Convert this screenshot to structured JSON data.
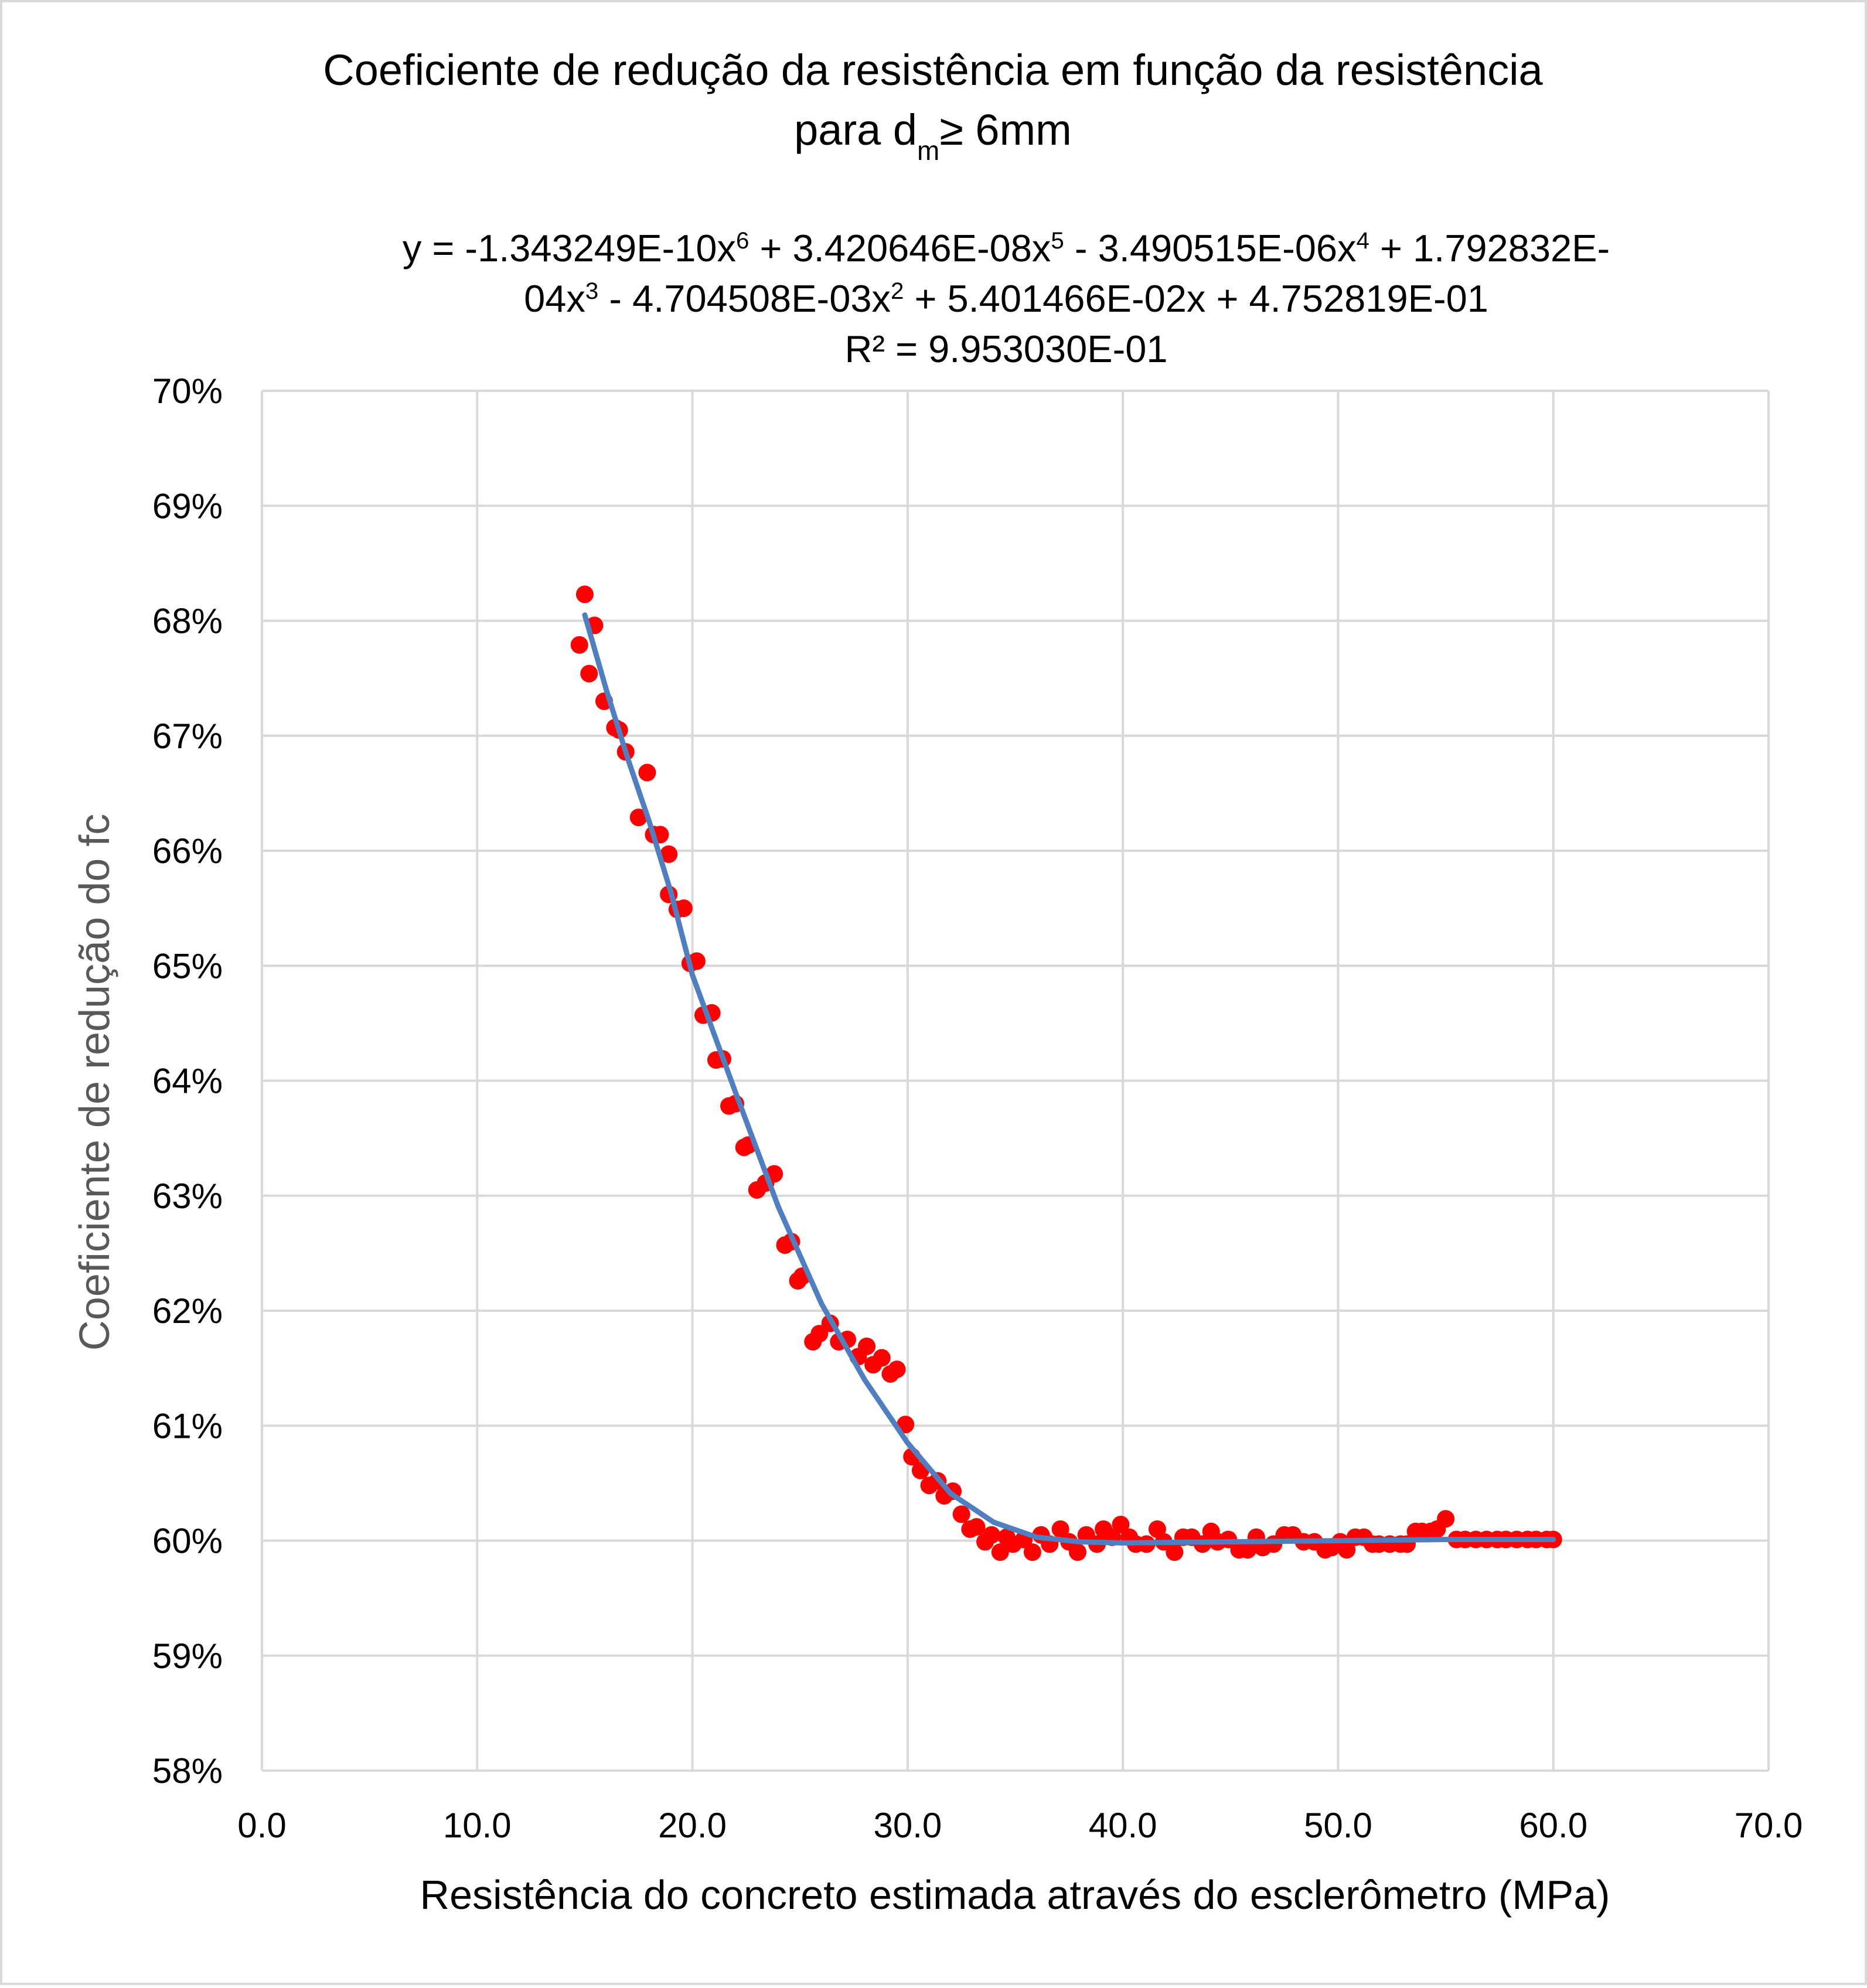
{
  "chart_data": {
    "type": "scatter",
    "title": [
      [
        "Coeficiente de redução da resistência em função da resistência"
      ],
      [
        "para d",
        {
          "sub": "m"
        },
        "≥ 6mm"
      ]
    ],
    "equation": [
      [
        "y = -1.343249E-10x",
        {
          "sup": "6"
        },
        " + 3.420646E-08x",
        {
          "sup": "5"
        },
        " - 3.490515E-06x",
        {
          "sup": "4"
        },
        " + 1.792832E-"
      ],
      [
        "04x",
        {
          "sup": "3"
        },
        " - 4.704508E-03x",
        {
          "sup": "2"
        },
        " + 5.401466E-02x + 4.752819E-01"
      ],
      [
        "R² = 9.953030E-01"
      ]
    ],
    "x_label": "Resistência do concreto estimada através do esclerômetro (MPa)",
    "y_label": "Coeficiente de redução do fc",
    "xlim": [
      0,
      70
    ],
    "ylim": [
      58,
      70
    ],
    "xticks": [
      {
        "value": 0,
        "label": "0.0"
      },
      {
        "value": 10,
        "label": "10.0"
      },
      {
        "value": 20,
        "label": "20.0"
      },
      {
        "value": 30,
        "label": "30.0"
      },
      {
        "value": 40,
        "label": "40.0"
      },
      {
        "value": 50,
        "label": "50.0"
      },
      {
        "value": 60,
        "label": "60.0"
      },
      {
        "value": 70,
        "label": "70.0"
      }
    ],
    "yticks": [
      {
        "value": 58,
        "label": "58%"
      },
      {
        "value": 59,
        "label": "59%"
      },
      {
        "value": 60,
        "label": "60%"
      },
      {
        "value": 61,
        "label": "61%"
      },
      {
        "value": 62,
        "label": "62%"
      },
      {
        "value": 63,
        "label": "63%"
      },
      {
        "value": 64,
        "label": "64%"
      },
      {
        "value": 65,
        "label": "65%"
      },
      {
        "value": 66,
        "label": "66%"
      },
      {
        "value": 67,
        "label": "67%"
      },
      {
        "value": 68,
        "label": "68%"
      },
      {
        "value": 69,
        "label": "69%"
      },
      {
        "value": 70,
        "label": "70%"
      }
    ],
    "grid": true,
    "series": [
      {
        "color": "#ff0000",
        "mode": "markers",
        "x": [
          14.75,
          15.0,
          15.45,
          15.2,
          15.9,
          16.4,
          16.6,
          16.9,
          17.5,
          17.9,
          18.2,
          18.5,
          18.9,
          18.9,
          19.3,
          19.6,
          19.9,
          20.2,
          20.5,
          20.9,
          21.1,
          21.4,
          21.7,
          22.0,
          22.4,
          22.6,
          23.0,
          23.4,
          23.8,
          24.3,
          24.6,
          24.9,
          25.1,
          25.6,
          25.9,
          26.4,
          26.8,
          27.2,
          27.7,
          28.1,
          28.4,
          28.8,
          29.2,
          29.5,
          29.9,
          30.2,
          30.6,
          31.0,
          31.4,
          31.7,
          32.1,
          32.5,
          32.9,
          33.2,
          33.6,
          33.9,
          34.3,
          34.6,
          34.9,
          35.4,
          35.8,
          36.2,
          36.6,
          37.1,
          37.5,
          37.9,
          38.3,
          38.8,
          39.1,
          39.5,
          39.9,
          40.3,
          40.6,
          41.1,
          41.6,
          41.9,
          42.4,
          42.8,
          43.2,
          43.7,
          44.1,
          44.4,
          44.9,
          45.4,
          45.8,
          46.2,
          46.5,
          47.0,
          47.5,
          47.9,
          48.4,
          48.9,
          49.4,
          49.7,
          50.1,
          50.4,
          50.8,
          51.2,
          51.6,
          51.9,
          52.4,
          52.9,
          53.2,
          53.6,
          53.9,
          54.3,
          54.6,
          55.0,
          55.5,
          55.9,
          56.4,
          56.9,
          57.4,
          57.8,
          58.3,
          58.8,
          59.2,
          59.7,
          60.0
        ],
        "values": [
          67.79,
          68.23,
          67.96,
          67.54,
          67.3,
          67.07,
          67.05,
          66.86,
          66.29,
          66.68,
          66.14,
          66.14,
          65.97,
          65.62,
          65.49,
          65.5,
          65.02,
          65.04,
          64.57,
          64.59,
          64.18,
          64.19,
          63.78,
          63.8,
          63.42,
          63.44,
          63.05,
          63.11,
          63.19,
          62.57,
          62.6,
          62.26,
          62.3,
          61.73,
          61.8,
          61.89,
          61.73,
          61.75,
          61.6,
          61.69,
          61.53,
          61.59,
          61.45,
          61.49,
          61.01,
          60.73,
          60.61,
          60.48,
          60.52,
          60.39,
          60.43,
          60.23,
          60.1,
          60.12,
          59.99,
          60.05,
          59.9,
          60.03,
          59.97,
          60.01,
          59.9,
          60.05,
          59.97,
          60.1,
          59.99,
          59.9,
          60.05,
          59.97,
          60.1,
          60.03,
          60.14,
          60.03,
          59.97,
          59.97,
          60.1,
          59.99,
          59.9,
          60.03,
          60.03,
          59.97,
          60.08,
          59.99,
          60.01,
          59.92,
          59.92,
          60.03,
          59.94,
          59.97,
          60.05,
          60.05,
          59.99,
          59.99,
          59.92,
          59.94,
          59.99,
          59.92,
          60.03,
          60.03,
          59.97,
          59.97,
          59.97,
          59.97,
          59.97,
          60.08,
          60.08,
          60.08,
          60.1,
          60.19,
          60.01,
          60.01,
          60.01,
          60.01,
          60.01,
          60.01,
          60.01,
          60.01,
          60.01,
          60.01,
          60.01
        ]
      },
      {
        "color": "#4f7fc0",
        "mode": "line",
        "x": [
          15,
          16,
          17,
          18,
          19,
          20,
          22,
          24,
          26,
          28,
          30,
          32,
          34,
          36,
          38,
          40,
          45,
          50,
          55,
          60
        ],
        "values": [
          68.05,
          67.4,
          66.8,
          66.25,
          65.64,
          64.92,
          63.9,
          62.9,
          62.06,
          61.4,
          60.85,
          60.41,
          60.16,
          60.03,
          59.99,
          59.98,
          59.99,
          60.0,
          60.01,
          60.01
        ]
      }
    ]
  }
}
